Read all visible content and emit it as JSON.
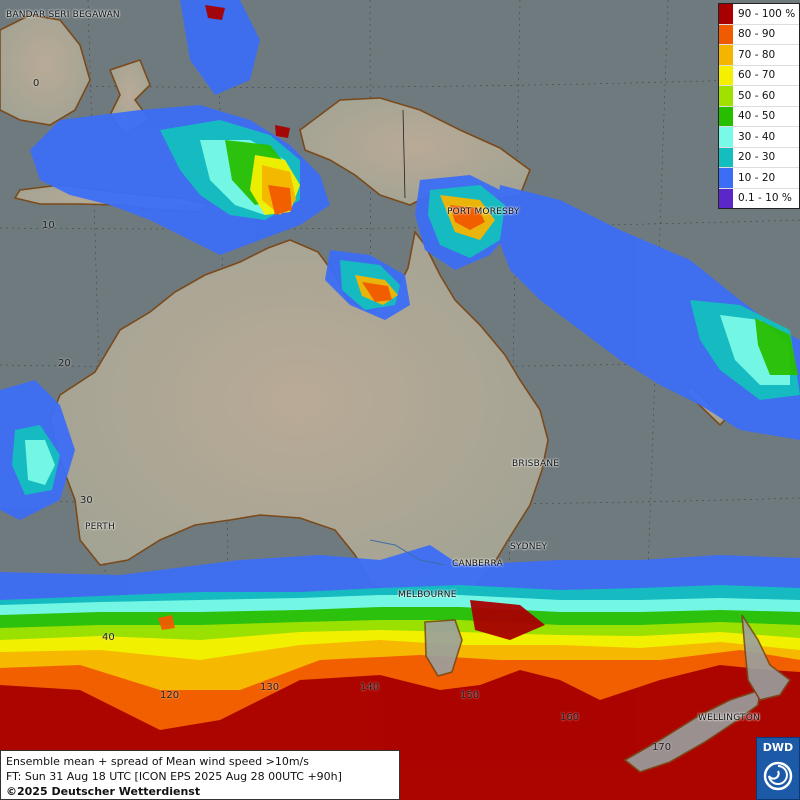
{
  "legend": {
    "items": [
      {
        "label": "90 - 100 %",
        "color": "#a80000"
      },
      {
        "label": "80 - 90",
        "color": "#f05a00"
      },
      {
        "label": "70 - 80",
        "color": "#f5b400"
      },
      {
        "label": "60 - 70",
        "color": "#f5f000"
      },
      {
        "label": "50 - 60",
        "color": "#a0e100"
      },
      {
        "label": "40 - 50",
        "color": "#28be00"
      },
      {
        "label": "30 - 40",
        "color": "#78fae6"
      },
      {
        "label": "20 - 30",
        "color": "#14bebe"
      },
      {
        "label": "10 - 20",
        "color": "#3c6ef5"
      },
      {
        "label": "0.1 - 10 %",
        "color": "#5a28c8"
      }
    ]
  },
  "places": {
    "bandar": "BANDAR SERI BEGAWAN",
    "port_moresby": "PORT MORESBY",
    "brisbane": "BRISBANE",
    "perth": "PERTH",
    "sydney": "SYDNEY",
    "canberra": "CANBERRA",
    "melbourne": "MELBOURNE",
    "wellington": "WELLINGTON"
  },
  "grid_labels": {
    "lat_0": "0",
    "lat_10": "10",
    "lat_20": "20",
    "lat_30": "30",
    "lat_40": "40",
    "lon_120": "120",
    "lon_130": "130",
    "lon_140": "140",
    "lon_150": "150",
    "lon_160": "160",
    "lon_170": "170"
  },
  "info": {
    "line1": "Ensemble mean + spread of Mean wind speed >10m/s",
    "line2": "FT: Sun 31 Aug 18 UTC [ICON EPS 2025 Aug 28 00UTC +90h]",
    "copyright": "©2025 Deutscher Wetterdienst"
  },
  "logo": {
    "text": "DWD"
  }
}
